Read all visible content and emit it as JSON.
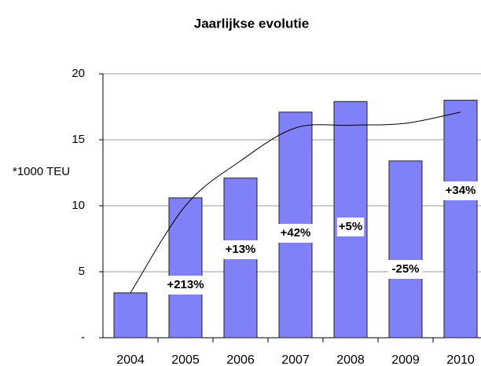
{
  "chart_data": {
    "type": "bar",
    "title": "Jaarlijkse evolutie",
    "ylabel": "*1000 TEU",
    "categories": [
      "2004",
      "2005",
      "2006",
      "2007",
      "2008",
      "2009",
      "2010"
    ],
    "values": [
      3.4,
      10.6,
      12.1,
      17.1,
      17.9,
      13.4,
      18.0
    ],
    "growth_labels": [
      null,
      "+213%",
      "+13%",
      "+42%",
      "+5%",
      "-25%",
      "+34%"
    ],
    "trend": {
      "values": [
        3.4,
        10.0,
        13.4,
        15.9,
        16.1,
        16.25,
        17.1
      ],
      "color": "#000000"
    },
    "color": "#8080f8",
    "ylim": [
      0,
      20
    ],
    "yticks": [
      {
        "value": 0,
        "label": "-"
      },
      5,
      10,
      15,
      20
    ],
    "grid": true
  }
}
